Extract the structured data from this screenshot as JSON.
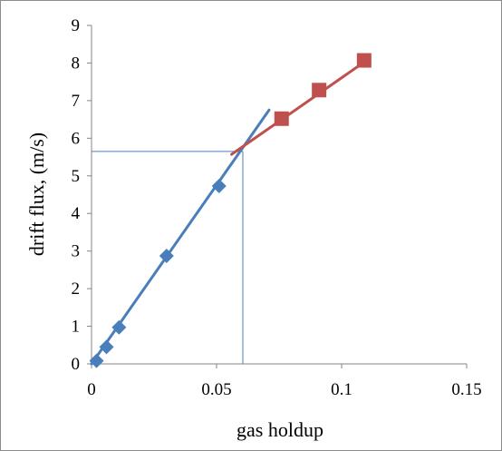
{
  "chart_data": {
    "type": "scatter",
    "xlabel": "gas holdup",
    "ylabel": "drift  flux,  (m/s)",
    "xlim": [
      0,
      0.15
    ],
    "ylim": [
      0,
      9
    ],
    "x_ticks": [
      "0",
      "0.05",
      "0.1",
      "0.15"
    ],
    "y_ticks": [
      "0",
      "1",
      "2",
      "3",
      "4",
      "5",
      "6",
      "7",
      "8",
      "9"
    ],
    "x_tick_values": [
      0,
      0.05,
      0.1,
      0.15
    ],
    "y_tick_values": [
      0,
      1,
      2,
      3,
      4,
      5,
      6,
      7,
      8,
      9
    ],
    "grid": false,
    "legend": "none",
    "series": [
      {
        "marker": "diamond",
        "color": "#4a7ebb",
        "x": [
          0.002,
          0.006,
          0.011,
          0.03,
          0.051
        ],
        "y": [
          0.08,
          0.45,
          0.97,
          2.87,
          4.73
        ]
      },
      {
        "marker": "square",
        "color": "#c0504d",
        "x": [
          0.076,
          0.091,
          0.109
        ],
        "y": [
          6.52,
          7.28,
          8.07
        ]
      }
    ],
    "trendlines": [
      {
        "color": "#4a7ebb",
        "x": [
          0.0,
          0.071
        ],
        "y": [
          0.0,
          6.75
        ]
      },
      {
        "color": "#c0504d",
        "x": [
          0.056,
          0.11
        ],
        "y": [
          5.57,
          8.07
        ]
      }
    ],
    "guide_lines": {
      "color": "#4a7ebb",
      "intersection": {
        "x": 0.0605,
        "y": 5.65
      }
    }
  }
}
